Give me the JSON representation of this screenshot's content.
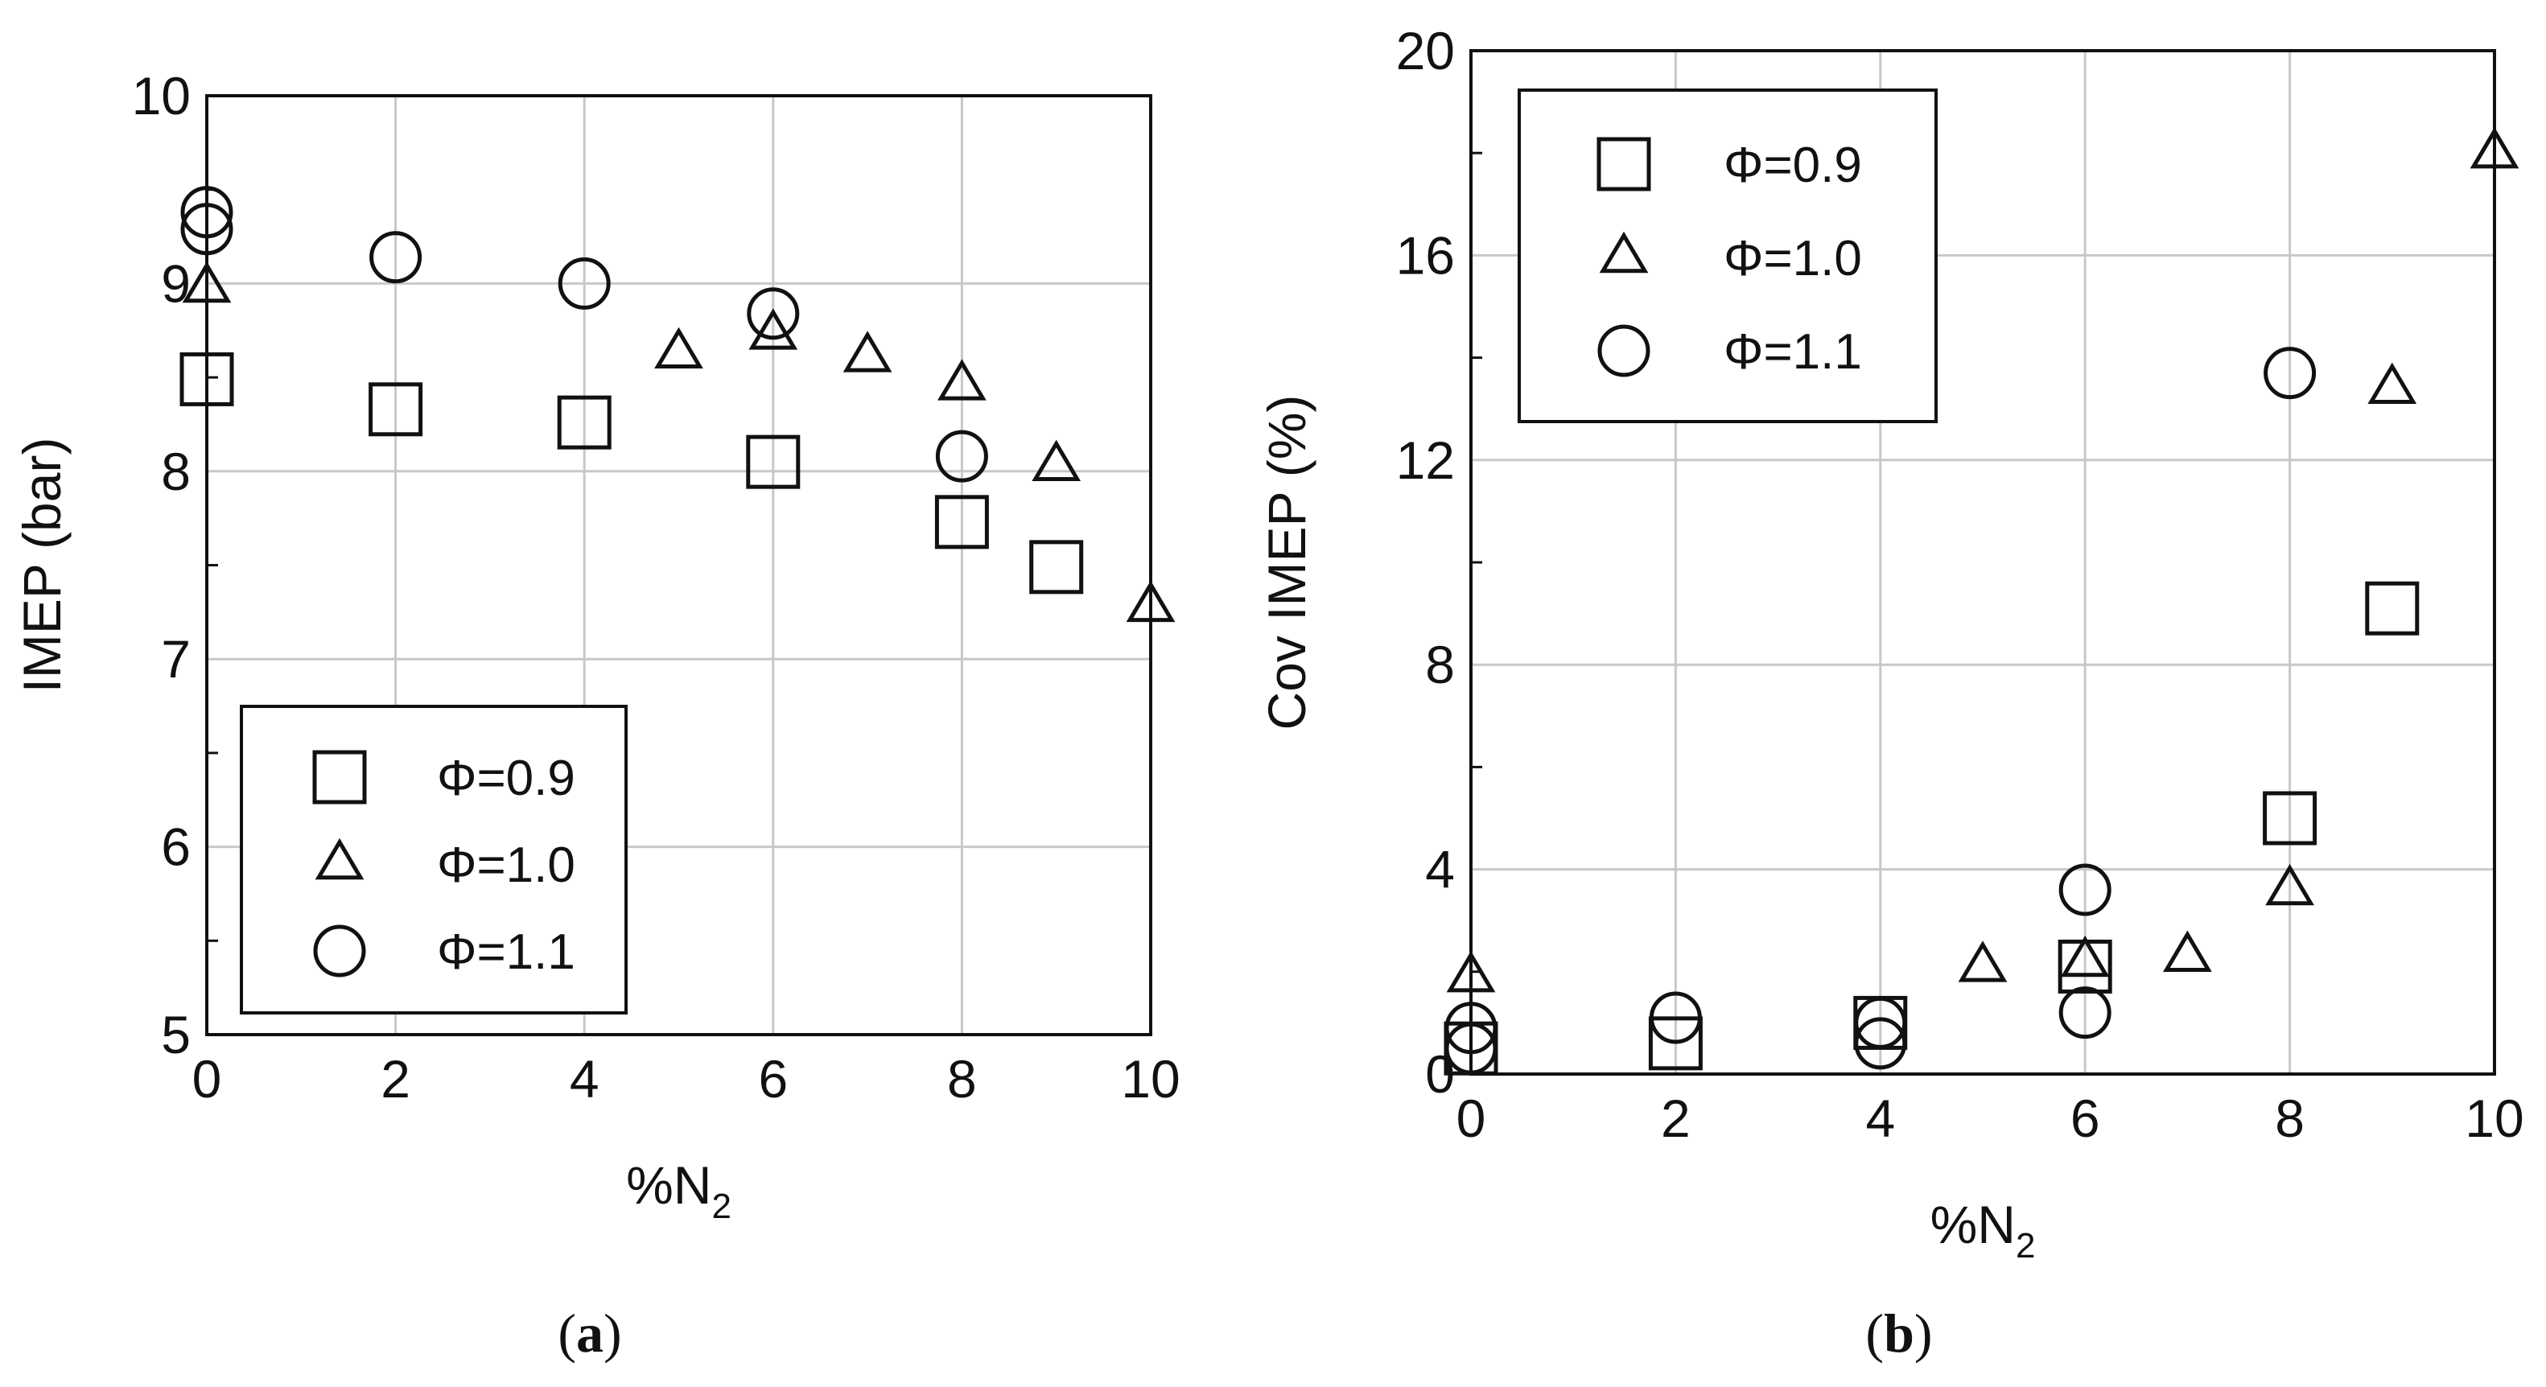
{
  "chart_data": [
    {
      "type": "scatter",
      "panel": "a",
      "caption": {
        "open": "(",
        "letter": "a",
        "close": ")"
      },
      "xlabel": {
        "main": "%N",
        "sub": "2"
      },
      "ylabel": "IMEP (bar)",
      "xlim": [
        0,
        10
      ],
      "ylim": [
        5,
        10
      ],
      "xticks": [
        0,
        2,
        4,
        6,
        8,
        10
      ],
      "yticks": [
        5,
        6,
        7,
        8,
        9,
        10
      ],
      "grid": true,
      "legend_position": "bottom-left",
      "series": [
        {
          "name": "Φ=0.9",
          "marker": "square",
          "points": [
            [
              0,
              8.49
            ],
            [
              2,
              8.33
            ],
            [
              4,
              8.26
            ],
            [
              6,
              8.05
            ],
            [
              8,
              7.73
            ],
            [
              9,
              7.49
            ]
          ]
        },
        {
          "name": "Φ=1.0",
          "marker": "triangle",
          "points": [
            [
              0,
              8.98
            ],
            [
              5,
              8.63
            ],
            [
              6,
              8.73
            ],
            [
              7,
              8.61
            ],
            [
              8,
              8.46
            ],
            [
              9,
              8.03
            ],
            [
              10,
              7.28
            ]
          ]
        },
        {
          "name": "Φ=1.1",
          "marker": "circle",
          "points": [
            [
              0,
              9.38
            ],
            [
              0,
              9.29
            ],
            [
              2,
              9.14
            ],
            [
              4,
              9.0
            ],
            [
              6,
              8.84
            ],
            [
              8,
              8.08
            ]
          ]
        }
      ]
    },
    {
      "type": "scatter",
      "panel": "b",
      "caption": {
        "open": "(",
        "letter": "b",
        "close": ")"
      },
      "xlabel": {
        "main": "%N",
        "sub": "2"
      },
      "ylabel": "Cov IMEP (%)",
      "xlim": [
        0,
        10
      ],
      "ylim": [
        0,
        20
      ],
      "xticks": [
        0,
        2,
        4,
        6,
        8,
        10
      ],
      "yticks": [
        0,
        4,
        8,
        12,
        16,
        20
      ],
      "grid": true,
      "legend_position": "top-left",
      "series": [
        {
          "name": "Φ=0.9",
          "marker": "square",
          "points": [
            [
              0,
              0.5
            ],
            [
              2,
              0.6
            ],
            [
              4,
              1.0
            ],
            [
              6,
              2.1
            ],
            [
              8,
              5.0
            ],
            [
              9,
              9.1
            ]
          ]
        },
        {
          "name": "Φ=1.0",
          "marker": "triangle",
          "points": [
            [
              0,
              1.9
            ],
            [
              5,
              2.1
            ],
            [
              6,
              2.2
            ],
            [
              7,
              2.3
            ],
            [
              8,
              3.6
            ],
            [
              9,
              13.4
            ],
            [
              10,
              18.0
            ]
          ]
        },
        {
          "name": "Φ=1.1",
          "marker": "circle",
          "points": [
            [
              0,
              0.9
            ],
            [
              0,
              0.5
            ],
            [
              2,
              1.1
            ],
            [
              4,
              1.0
            ],
            [
              4,
              0.6
            ],
            [
              6,
              3.6
            ],
            [
              6,
              1.2
            ],
            [
              8,
              13.7
            ]
          ]
        }
      ]
    }
  ]
}
